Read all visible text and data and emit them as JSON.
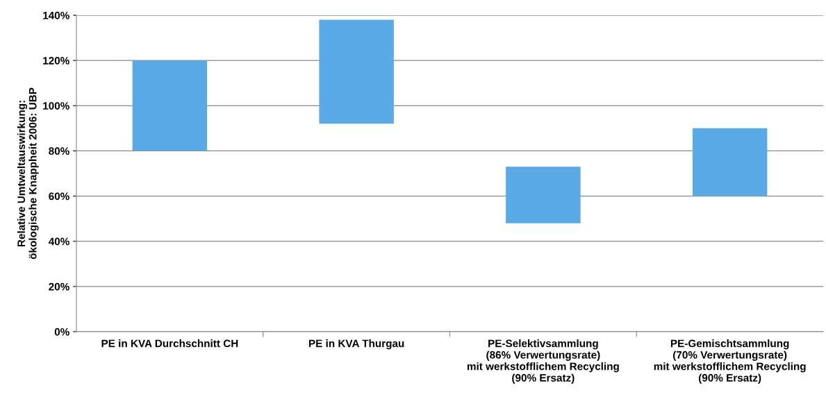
{
  "chart_data": {
    "type": "bar",
    "categories": [
      "PE in KVA Durchschnitt CH",
      "PE in KVA Thurgau",
      "PE-Selektivsammlung\n(86% Verwertungsrate)\nmit werkstofflichem Recycling\n(90% Ersatz)",
      "PE-Gemischtsammlung\n(70% Verwertungsrate)\nmit werkstofflichem Recycling\n(90% Ersatz)"
    ],
    "base": [
      80,
      92,
      48,
      60
    ],
    "values": [
      40,
      46,
      25,
      30
    ],
    "color": "#5aaae6",
    "ylabel": "Relative Umtweltauswirkung:\nökologische Knappheit 2006: UBP",
    "ylim": [
      0,
      140
    ],
    "yticks": [
      {
        "value": 0,
        "label": "0%"
      },
      {
        "value": 20,
        "label": "20%"
      },
      {
        "value": 40,
        "label": "40%"
      },
      {
        "value": 60,
        "label": "60%"
      },
      {
        "value": 80,
        "label": "80%"
      },
      {
        "value": 100,
        "label": "100%"
      },
      {
        "value": 120,
        "label": "120%"
      },
      {
        "value": 140,
        "label": "140%"
      }
    ],
    "grid": "y"
  }
}
